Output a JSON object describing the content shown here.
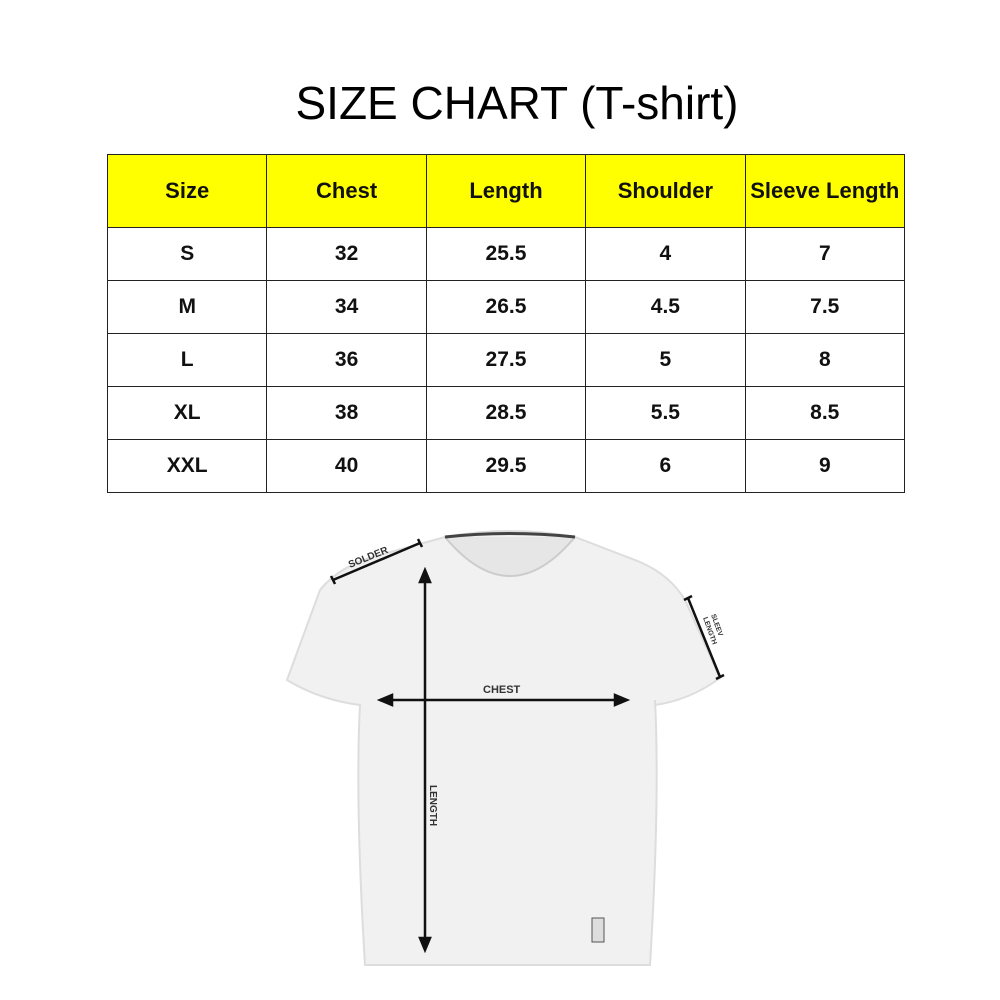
{
  "title": "SIZE CHART (T-shirt)",
  "table": {
    "headers": [
      "Size",
      "Chest",
      "Length",
      "Shoulder",
      "Sleeve Length"
    ],
    "rows": [
      [
        "S",
        "32",
        "25.5",
        "4",
        "7"
      ],
      [
        "M",
        "34",
        "26.5",
        "4.5",
        "7.5"
      ],
      [
        "L",
        "36",
        "27.5",
        "5",
        "8"
      ],
      [
        "XL",
        "38",
        "28.5",
        "5.5",
        "8.5"
      ],
      [
        "XXL",
        "40",
        "29.5",
        "6",
        "9"
      ]
    ],
    "header_color": "#ffff00"
  },
  "diagram": {
    "shoulder": "SOLDER",
    "chest": "CHEST",
    "length": "LENGTH",
    "sleeve_line1": "SLEEV",
    "sleeve_line2": "LENGTH"
  }
}
